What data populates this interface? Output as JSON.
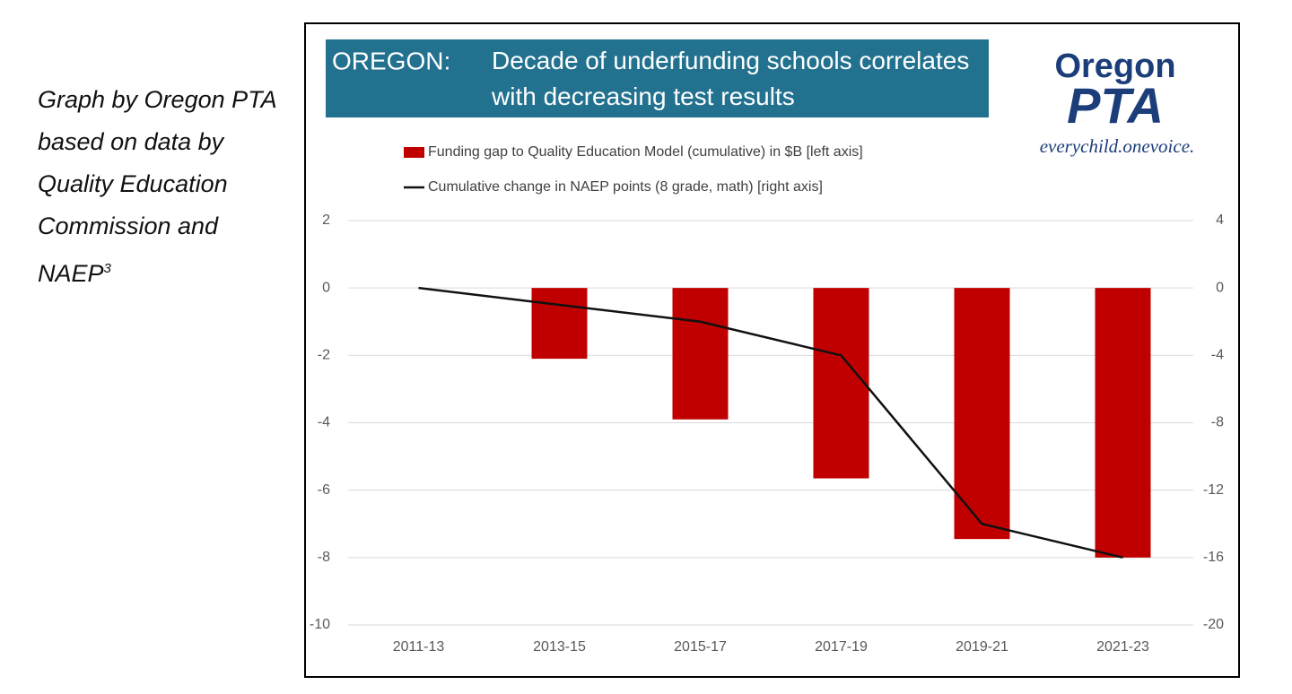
{
  "caption": {
    "text": "Graph by Oregon PTA based on data by Quality Education Commission and NAEP",
    "footnote": "3"
  },
  "logo": {
    "name": "Oregon",
    "org": "PTA",
    "slogan": "everychild.onevoice."
  },
  "chart_data": {
    "type": "bar",
    "title_label": "OREGON:",
    "title": "Decade of underfunding schools correlates with decreasing test results",
    "categories": [
      "2011-13",
      "2013-15",
      "2015-17",
      "2017-19",
      "2019-21",
      "2021-23"
    ],
    "series": [
      {
        "name": "Funding gap to Quality Education Model (cumulative) in $B [left axis]",
        "color": "#c00000",
        "type": "bar",
        "values": [
          0,
          -2.1,
          -3.9,
          -5.65,
          -7.45,
          -8.0
        ]
      },
      {
        "name": "Cumulative change in NAEP points (8 grade, math) [right axis]",
        "color": "#111111",
        "type": "line",
        "axis": "y2",
        "values": [
          0,
          -1,
          -2,
          -4,
          -14,
          -16
        ]
      }
    ],
    "ylim": [
      -10,
      2
    ],
    "yticks": [
      -10,
      -8,
      -6,
      -4,
      -2,
      0,
      2
    ],
    "y2lim": [
      -20,
      4
    ],
    "y2ticks": [
      -20,
      -16,
      -12,
      -8,
      -4,
      0,
      4
    ],
    "grid": true
  }
}
